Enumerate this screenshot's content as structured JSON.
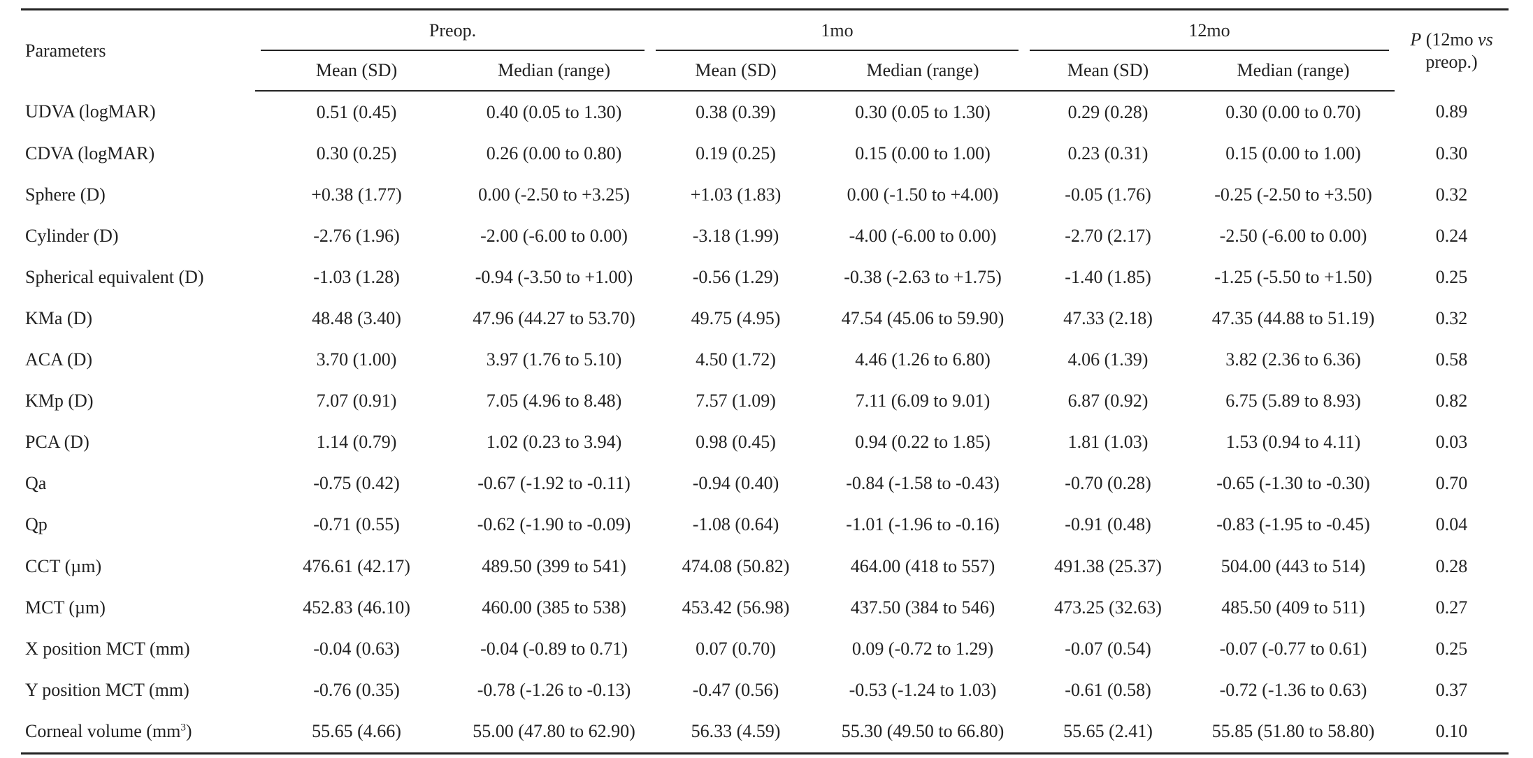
{
  "header": {
    "parameters": "Parameters",
    "groups": [
      "Preop.",
      "1mo",
      "12mo"
    ],
    "subcols": [
      "Mean (SD)",
      "Median (range)"
    ],
    "p_label": "P",
    "p_rest_1": " (12mo ",
    "p_vs": "vs",
    "p_rest_2": "preop.)"
  },
  "rows": [
    {
      "param": " UDVA (logMAR)",
      "v": [
        "0.51 (0.45)",
        "0.40 (0.05 to 1.30)",
        "0.38 (0.39)",
        "0.30 (0.05 to 1.30)",
        "0.29 (0.28)",
        "0.30 (0.00 to 0.70)"
      ],
      "p": "0.89"
    },
    {
      "param": "CDVA (logMAR)",
      "v": [
        "0.30 (0.25)",
        "0.26 (0.00 to 0.80)",
        "0.19 (0.25)",
        "0.15 (0.00 to 1.00)",
        "0.23 (0.31)",
        "0.15 (0.00 to 1.00)"
      ],
      "p": "0.30"
    },
    {
      "param": "Sphere (D)",
      "v": [
        "+0.38 (1.77)",
        "0.00 (-2.50 to +3.25)",
        "+1.03 (1.83)",
        "0.00 (-1.50 to +4.00)",
        "-0.05 (1.76)",
        "-0.25 (-2.50 to +3.50)"
      ],
      "p": "0.32"
    },
    {
      "param": "Cylinder (D)",
      "v": [
        "-2.76 (1.96)",
        "-2.00 (-6.00 to 0.00)",
        "-3.18 (1.99)",
        "-4.00 (-6.00 to 0.00)",
        "-2.70 (2.17)",
        "-2.50 (-6.00 to 0.00)"
      ],
      "p": "0.24"
    },
    {
      "param": "Spherical equivalent (D)",
      "v": [
        "-1.03 (1.28)",
        "-0.94 (-3.50 to +1.00)",
        "-0.56 (1.29)",
        "-0.38 (-2.63 to +1.75)",
        "-1.40 (1.85)",
        "-1.25 (-5.50 to +1.50)"
      ],
      "p": "0.25"
    },
    {
      "param": "KMa (D)",
      "v": [
        "48.48 (3.40)",
        "47.96 (44.27 to 53.70)",
        "49.75 (4.95)",
        "47.54 (45.06 to 59.90)",
        "47.33 (2.18)",
        "47.35 (44.88 to 51.19)"
      ],
      "p": "0.32"
    },
    {
      "param": "ACA (D)",
      "v": [
        "3.70 (1.00)",
        "3.97 (1.76 to 5.10)",
        "4.50 (1.72)",
        "4.46 (1.26 to 6.80)",
        "4.06 (1.39)",
        "3.82 (2.36 to 6.36)"
      ],
      "p": "0.58"
    },
    {
      "param": "KMp (D)",
      "v": [
        "7.07 (0.91)",
        "7.05 (4.96 to 8.48)",
        "7.57 (1.09)",
        "7.11 (6.09 to 9.01)",
        "6.87 (0.92)",
        "6.75 (5.89 to 8.93)"
      ],
      "p": "0.82"
    },
    {
      "param": "PCA (D)",
      "v": [
        "1.14 (0.79)",
        "1.02 (0.23 to 3.94)",
        "0.98 (0.45)",
        "0.94 (0.22 to 1.85)",
        "1.81 (1.03)",
        "1.53 (0.94 to 4.11)"
      ],
      "p": "0.03"
    },
    {
      "param": "Qa",
      "v": [
        "-0.75 (0.42)",
        "-0.67 (-1.92 to -0.11)",
        "-0.94 (0.40)",
        "-0.84 (-1.58 to -0.43)",
        "-0.70 (0.28)",
        "-0.65 (-1.30 to -0.30)"
      ],
      "p": "0.70"
    },
    {
      "param": "Qp",
      "v": [
        "-0.71 (0.55)",
        "-0.62 (-1.90 to -0.09)",
        "-1.08 (0.64)",
        "-1.01 (-1.96 to -0.16)",
        "-0.91 (0.48)",
        "-0.83 (-1.95 to -0.45)"
      ],
      "p": "0.04"
    },
    {
      "param": "CCT (µm)",
      "v": [
        "476.61 (42.17)",
        "489.50 (399 to 541)",
        "474.08 (50.82)",
        "464.00 (418 to 557)",
        "491.38 (25.37)",
        "504.00 (443 to 514)"
      ],
      "p": "0.28"
    },
    {
      "param": "MCT (µm)",
      "v": [
        "452.83 (46.10)",
        "460.00 (385 to 538)",
        "453.42 (56.98)",
        "437.50 (384 to 546)",
        "473.25 (32.63)",
        "485.50 (409 to 511)"
      ],
      "p": "0.27"
    },
    {
      "param": "X position MCT (mm)",
      "v": [
        "-0.04 (0.63)",
        "-0.04 (-0.89 to 0.71)",
        "0.07 (0.70)",
        "0.09 (-0.72 to 1.29)",
        "-0.07 (0.54)",
        "-0.07 (-0.77 to 0.61)"
      ],
      "p": "0.25"
    },
    {
      "param": "Y position MCT (mm)",
      "v": [
        "-0.76 (0.35)",
        "-0.78 (-1.26 to -0.13)",
        "-0.47 (0.56)",
        "-0.53 (-1.24 to 1.03)",
        "-0.61 (0.58)",
        "-0.72 (-1.36 to 0.63)"
      ],
      "p": "0.37"
    },
    {
      "param": "Corneal volume (mm",
      "param_sup": "3",
      "param_tail": ")",
      "v": [
        "55.65 (4.66)",
        "55.00 (47.80 to 62.90)",
        "56.33 (4.59)",
        "55.30 (49.50 to 66.80)",
        "55.65 (2.41)",
        "55.85 (51.80 to 58.80)"
      ],
      "p": "0.10"
    }
  ]
}
